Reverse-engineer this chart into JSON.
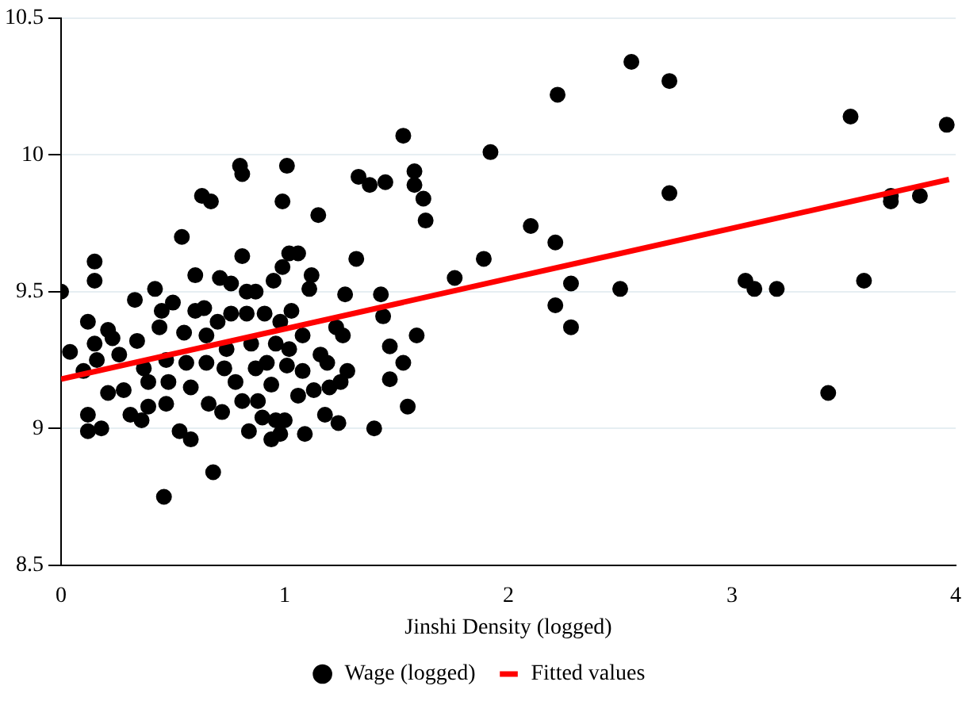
{
  "chart_data": {
    "type": "scatter",
    "xlabel": "Jinshi Density (logged)",
    "xlim": [
      0,
      4
    ],
    "xticks": [
      0,
      1,
      2,
      3,
      4
    ],
    "ylim": [
      8.5,
      10.5
    ],
    "yticks": [
      8.5,
      9,
      9.5,
      10,
      10.5
    ],
    "grid": "y",
    "legend": "bottom",
    "series": [
      {
        "name": "Wage (logged)",
        "color": "#000000",
        "type": "scatter",
        "marker": "circle",
        "x": [
          0,
          0.04,
          0.1,
          0.12,
          0.12,
          0.12,
          0.15,
          0.15,
          0.15,
          0.16,
          0.18,
          0.21,
          0.21,
          0.23,
          0.26,
          0.28,
          0.31,
          0.33,
          0.34,
          0.36,
          0.37,
          0.39,
          0.39,
          0.42,
          0.44,
          0.45,
          0.46,
          0.47,
          0.47,
          0.48,
          0.5,
          0.53,
          0.54,
          0.55,
          0.56,
          0.58,
          0.58,
          0.6,
          0.6,
          0.63,
          0.64,
          0.65,
          0.65,
          0.66,
          0.67,
          0.68,
          0.7,
          0.71,
          0.72,
          0.73,
          0.74,
          0.76,
          0.76,
          0.78,
          0.8,
          0.81,
          0.81,
          0.81,
          0.83,
          0.83,
          0.84,
          0.85,
          0.87,
          0.87,
          0.88,
          0.9,
          0.91,
          0.92,
          0.94,
          0.94,
          0.95,
          0.96,
          0.96,
          0.98,
          0.98,
          0.99,
          0.99,
          1,
          1.01,
          1.01,
          1.02,
          1.02,
          1.03,
          1.06,
          1.06,
          1.08,
          1.08,
          1.09,
          1.11,
          1.12,
          1.13,
          1.15,
          1.16,
          1.18,
          1.19,
          1.2,
          1.23,
          1.24,
          1.25,
          1.26,
          1.27,
          1.28,
          1.32,
          1.33,
          1.38,
          1.4,
          1.43,
          1.44,
          1.45,
          1.47,
          1.47,
          1.53,
          1.53,
          1.55,
          1.58,
          1.58,
          1.59,
          1.62,
          1.63,
          1.76,
          1.89,
          1.92,
          2.1,
          2.21,
          2.22,
          2.21,
          2.28,
          2.28,
          2.5,
          2.55,
          2.72,
          2.72,
          3.06,
          3.1,
          3.2,
          3.43,
          3.53,
          3.59,
          3.71,
          3.71,
          3.84,
          3.96
        ],
        "values": [
          9.5,
          9.28,
          9.21,
          9.39,
          9.05,
          8.99,
          9.61,
          9.54,
          9.31,
          9.25,
          9,
          9.13,
          9.36,
          9.33,
          9.27,
          9.14,
          9.05,
          9.47,
          9.32,
          9.03,
          9.22,
          9.08,
          9.17,
          9.51,
          9.37,
          9.43,
          8.75,
          9.25,
          9.09,
          9.17,
          9.46,
          8.99,
          9.7,
          9.35,
          9.24,
          9.15,
          8.96,
          9.56,
          9.43,
          9.85,
          9.44,
          9.24,
          9.34,
          9.09,
          9.83,
          8.84,
          9.39,
          9.55,
          9.06,
          9.22,
          9.29,
          9.42,
          9.53,
          9.17,
          9.96,
          9.93,
          9.1,
          9.63,
          9.5,
          9.42,
          8.99,
          9.31,
          9.22,
          9.5,
          9.1,
          9.04,
          9.42,
          9.24,
          8.96,
          9.16,
          9.54,
          9.03,
          9.31,
          8.98,
          9.39,
          9.59,
          9.83,
          9.03,
          9.23,
          9.96,
          9.64,
          9.29,
          9.43,
          9.64,
          9.12,
          9.34,
          9.21,
          8.98,
          9.51,
          9.56,
          9.14,
          9.78,
          9.27,
          9.05,
          9.24,
          9.15,
          9.37,
          9.02,
          9.17,
          9.34,
          9.49,
          9.21,
          9.62,
          9.92,
          9.89,
          9,
          9.49,
          9.41,
          9.9,
          9.3,
          9.18,
          10.07,
          9.24,
          9.08,
          9.94,
          9.89,
          9.34,
          9.84,
          9.76,
          9.55,
          9.62,
          10.01,
          9.74,
          9.68,
          10.22,
          9.45,
          9.53,
          9.37,
          9.51,
          10.34,
          10.27,
          9.86,
          9.54,
          9.51,
          9.51,
          9.13,
          10.14,
          9.54,
          9.85,
          9.83,
          9.85,
          10.11
        ]
      },
      {
        "name": "Fitted values",
        "color": "#ff0000",
        "type": "line",
        "x": [
          0,
          3.97
        ],
        "values": [
          9.18,
          9.91
        ]
      }
    ]
  }
}
